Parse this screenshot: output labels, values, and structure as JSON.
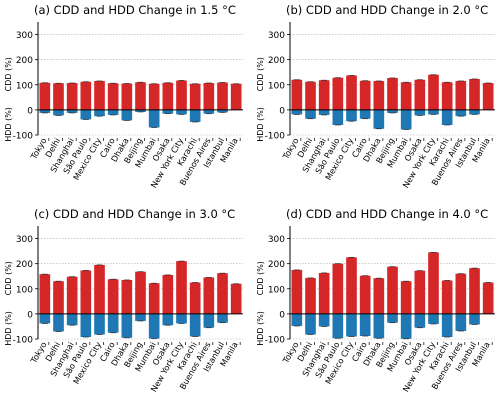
{
  "figure": {
    "cities": [
      "Tokyo",
      "Delhi",
      "Shanghai",
      "São Paulo",
      "Mexico City",
      "Cairo",
      "Dhaka",
      "Beijing",
      "Mumbai",
      "Osaka",
      "New York City",
      "Karachi",
      "Buenos Aires",
      "Istanbul",
      "Manila"
    ],
    "y_tick_labels": [
      "300",
      "200",
      "100",
      "0",
      "-100"
    ],
    "cdd_axis_label": "CDD (%)",
    "hdd_axis_label": "HDD (%)",
    "colors": {
      "cdd": "#d62728",
      "hdd": "#1f77b4",
      "grid": "#b0b0b0"
    }
  },
  "chart_data": [
    {
      "type": "bar",
      "title": "(a) CDD and HDD Change in 1.5 °C",
      "categories": [
        "Tokyo",
        "Delhi",
        "Shanghai",
        "São Paulo",
        "Mexico City",
        "Cairo",
        "Dhaka",
        "Beijing",
        "Mumbai",
        "Osaka",
        "New York City",
        "Karachi",
        "Buenos Aires",
        "Istanbul",
        "Manila"
      ],
      "ylim": [
        -100,
        350
      ],
      "yticks": [
        300,
        200,
        100,
        0,
        -100
      ],
      "grid": true,
      "series": [
        {
          "name": "CDD (%)",
          "values": [
            108,
            106,
            107,
            112,
            115,
            106,
            105,
            110,
            104,
            108,
            117,
            104,
            107,
            109,
            104
          ]
        },
        {
          "name": "HDD (%)",
          "values": [
            -12,
            -22,
            -12,
            -38,
            -25,
            -20,
            -42,
            -8,
            -70,
            -15,
            -18,
            -48,
            -15,
            -10,
            0
          ]
        }
      ]
    },
    {
      "type": "bar",
      "title": "(b) CDD and HDD Change in 2.0 °C",
      "categories": [
        "Tokyo",
        "Delhi",
        "Shanghai",
        "São Paulo",
        "Mexico City",
        "Cairo",
        "Dhaka",
        "Beijing",
        "Mumbai",
        "Osaka",
        "New York City",
        "Karachi",
        "Buenos Aires",
        "Istanbul",
        "Manila"
      ],
      "ylim": [
        -100,
        350
      ],
      "yticks": [
        300,
        200,
        100,
        0,
        -100
      ],
      "grid": true,
      "series": [
        {
          "name": "CDD (%)",
          "values": [
            120,
            112,
            118,
            128,
            137,
            116,
            115,
            127,
            110,
            120,
            140,
            110,
            115,
            123,
            107
          ]
        },
        {
          "name": "HDD (%)",
          "values": [
            -18,
            -35,
            -20,
            -60,
            -45,
            -35,
            -75,
            -12,
            -78,
            -22,
            -18,
            -60,
            -25,
            -18,
            0
          ]
        }
      ]
    },
    {
      "type": "bar",
      "title": "(c) CDD and HDD Change in 3.0 °C",
      "categories": [
        "Tokyo",
        "Delhi",
        "Shanghai",
        "São Paulo",
        "Mexico City",
        "Cairo",
        "Dhaka",
        "Beijing",
        "Mumbai",
        "Osaka",
        "New York City",
        "Karachi",
        "Buenos Aires",
        "Istanbul",
        "Manila"
      ],
      "ylim": [
        -100,
        350
      ],
      "yticks": [
        300,
        200,
        100,
        0,
        -100
      ],
      "grid": true,
      "series": [
        {
          "name": "CDD (%)",
          "values": [
            158,
            130,
            148,
            173,
            195,
            138,
            135,
            168,
            122,
            155,
            210,
            125,
            145,
            162,
            120
          ]
        },
        {
          "name": "HDD (%)",
          "values": [
            -38,
            -70,
            -45,
            -92,
            -82,
            -75,
            -95,
            -28,
            -98,
            -45,
            -38,
            -90,
            -55,
            -35,
            0
          ]
        }
      ]
    },
    {
      "type": "bar",
      "title": "(d) CDD and HDD Change in 4.0 °C",
      "categories": [
        "Tokyo",
        "Delhi",
        "Shanghai",
        "São Paulo",
        "Mexico City",
        "Cairo",
        "Dhaka",
        "Beijing",
        "Mumbai",
        "Osaka",
        "New York City",
        "Karachi",
        "Buenos Aires",
        "Istanbul",
        "Manila"
      ],
      "ylim": [
        -100,
        350
      ],
      "yticks": [
        300,
        200,
        100,
        0,
        -100
      ],
      "grid": true,
      "series": [
        {
          "name": "CDD (%)",
          "values": [
            175,
            143,
            163,
            200,
            225,
            152,
            142,
            188,
            130,
            172,
            245,
            133,
            160,
            182,
            125
          ]
        },
        {
          "name": "HDD (%)",
          "values": [
            -48,
            -82,
            -50,
            -97,
            -90,
            -88,
            -97,
            -35,
            -99,
            -55,
            -40,
            -92,
            -68,
            -42,
            0
          ]
        }
      ]
    }
  ]
}
